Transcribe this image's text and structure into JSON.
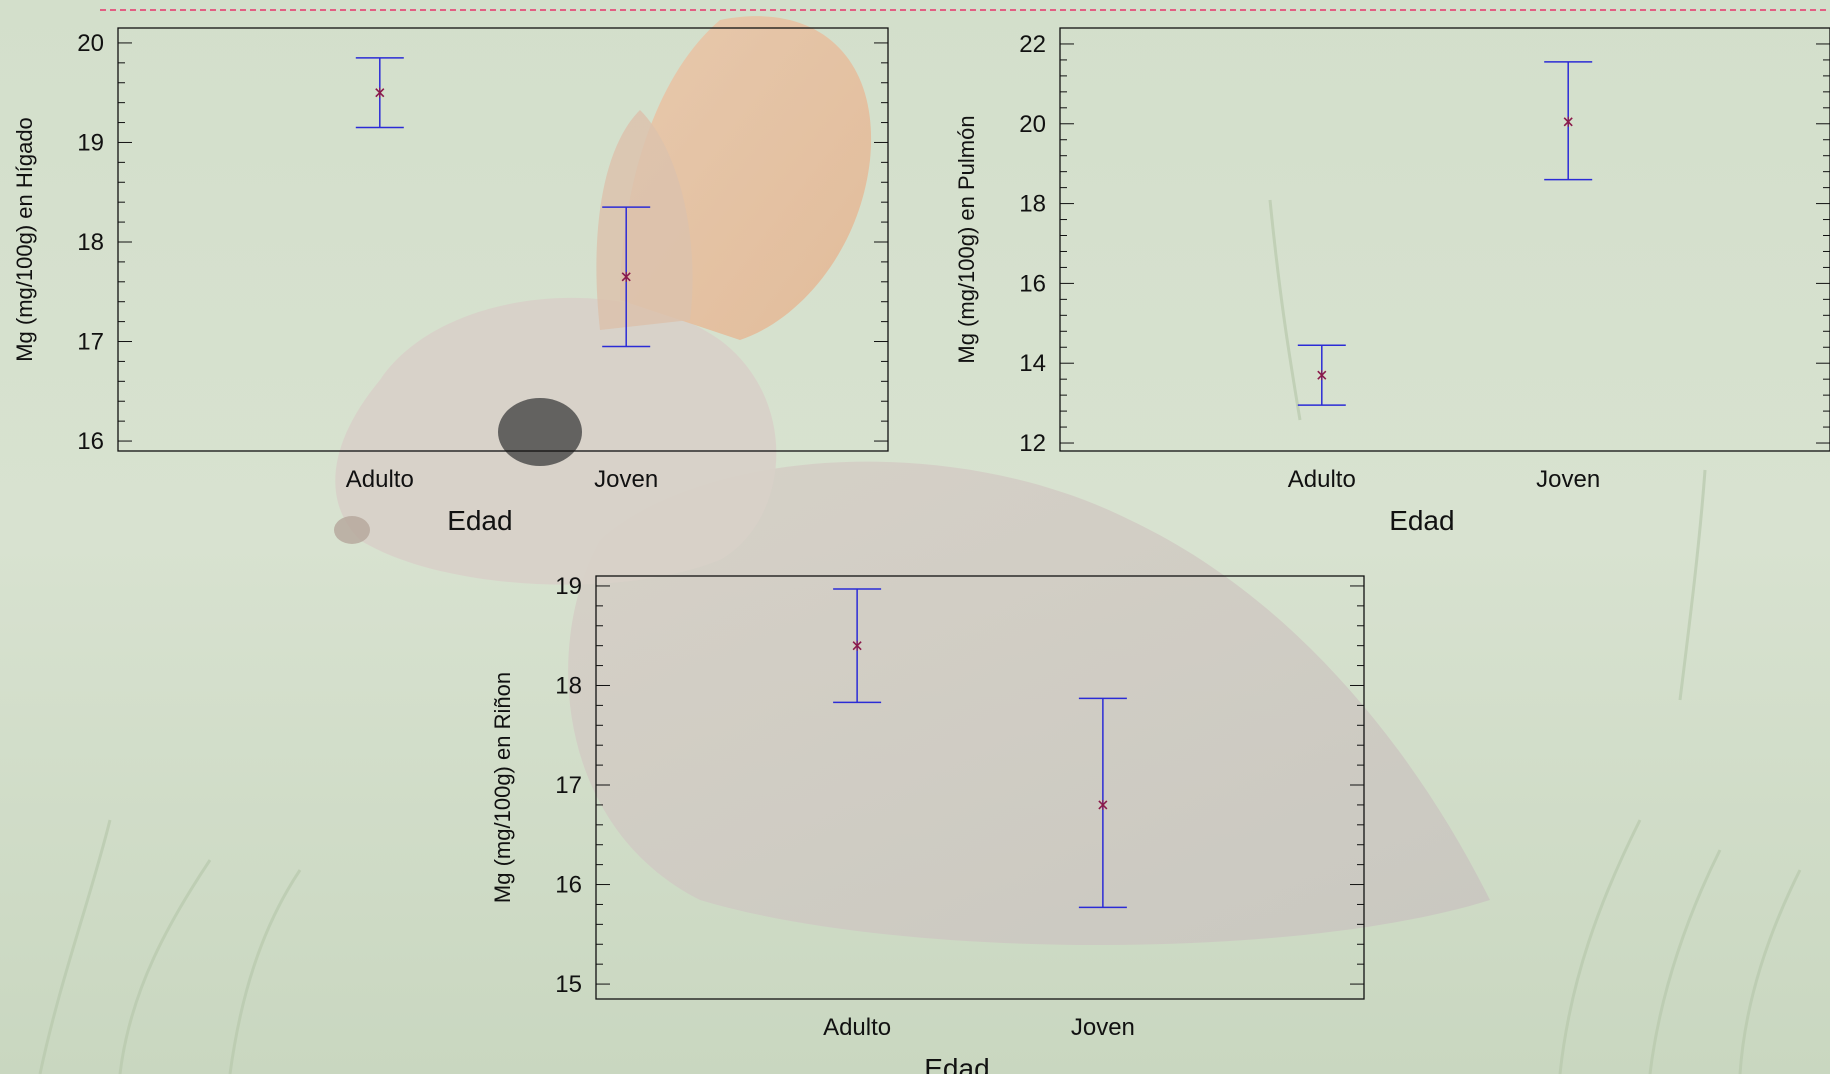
{
  "background": {
    "image": "rabbit-in-grass-photo",
    "divider_color": "#e8336b"
  },
  "colors": {
    "errorbar": "#2b2bd6",
    "point": "#8b1a4a",
    "frame": "#111111"
  },
  "chart_data": [
    {
      "type": "errorbar",
      "categories": [
        "Adulto",
        "Joven"
      ],
      "values": [
        19.5,
        17.65
      ],
      "lower": [
        19.15,
        16.95
      ],
      "upper": [
        19.85,
        18.35
      ],
      "ylim": [
        15.9,
        20.15
      ],
      "yticks": [
        16,
        17,
        18,
        19,
        20
      ],
      "xlabel": "Edad",
      "ylabel": "Mg (mg/100g) en Hígado",
      "grid": false
    },
    {
      "type": "errorbar",
      "categories": [
        "Adulto",
        "Joven"
      ],
      "values": [
        13.7,
        20.05
      ],
      "lower": [
        12.95,
        18.6
      ],
      "upper": [
        14.45,
        21.55
      ],
      "ylim": [
        11.8,
        22.4
      ],
      "yticks": [
        12,
        14,
        16,
        18,
        20,
        22
      ],
      "xlabel": "Edad",
      "ylabel": "Mg (mg/100g) en Pulmón",
      "grid": false
    },
    {
      "type": "errorbar",
      "categories": [
        "Adulto",
        "Joven"
      ],
      "values": [
        18.4,
        16.8
      ],
      "lower": [
        17.83,
        15.77
      ],
      "upper": [
        18.97,
        17.87
      ],
      "ylim": [
        14.85,
        19.1
      ],
      "yticks": [
        15,
        16,
        17,
        18,
        19
      ],
      "xlabel": "Edad",
      "ylabel": "Mg (mg/100g) en Riñon",
      "grid": false
    }
  ]
}
